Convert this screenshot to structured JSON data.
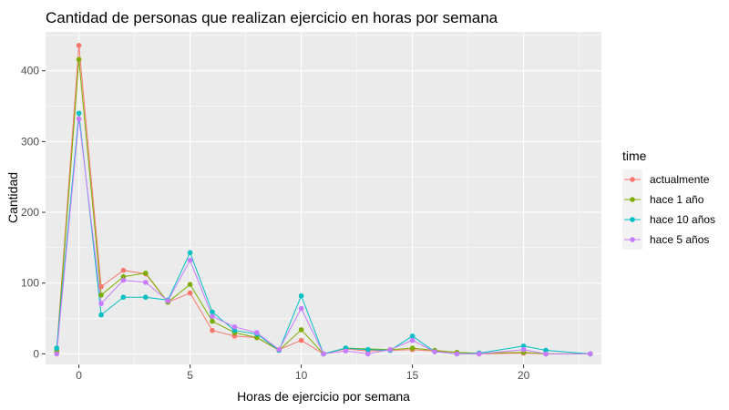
{
  "chart_data": {
    "type": "line",
    "title": "Cantidad de personas que realizan ejercicio en horas por semana",
    "xlabel": "Horas de ejercicio por semana",
    "ylabel": "Cantidad",
    "xlim": [
      -1.5,
      23.5
    ],
    "ylim": [
      -15,
      455
    ],
    "x_ticks": [
      0,
      5,
      10,
      15,
      20
    ],
    "y_ticks": [
      0,
      100,
      200,
      300,
      400
    ],
    "grid": true,
    "legend_title": "time",
    "legend_position": "right",
    "series": [
      {
        "name": "actualmente",
        "color": "#F8766D",
        "points": [
          [
            -1,
            5
          ],
          [
            0,
            436
          ],
          [
            1,
            95
          ],
          [
            2,
            118
          ],
          [
            3,
            113
          ],
          [
            4,
            73
          ],
          [
            5,
            86
          ],
          [
            6,
            33
          ],
          [
            7,
            25
          ],
          [
            8,
            23
          ],
          [
            9,
            6
          ],
          [
            10,
            19
          ],
          [
            11,
            0
          ],
          [
            12,
            7
          ],
          [
            13,
            4
          ],
          [
            14,
            5
          ],
          [
            15,
            6
          ],
          [
            16,
            4
          ],
          [
            17,
            2
          ],
          [
            18,
            0
          ],
          [
            20,
            1
          ],
          [
            21,
            0
          ],
          [
            23,
            0
          ]
        ]
      },
      {
        "name": "hace 1 año",
        "color": "#7CAE00",
        "points": [
          [
            -1,
            3
          ],
          [
            0,
            416
          ],
          [
            1,
            83
          ],
          [
            2,
            109
          ],
          [
            3,
            114
          ],
          [
            4,
            73
          ],
          [
            5,
            98
          ],
          [
            6,
            46
          ],
          [
            7,
            30
          ],
          [
            8,
            23
          ],
          [
            9,
            5
          ],
          [
            10,
            34
          ],
          [
            11,
            0
          ],
          [
            12,
            8
          ],
          [
            14,
            6
          ],
          [
            15,
            8
          ],
          [
            16,
            5
          ],
          [
            17,
            2
          ],
          [
            18,
            1
          ],
          [
            20,
            2
          ],
          [
            21,
            0
          ],
          [
            23,
            0
          ]
        ]
      },
      {
        "name": "hace 10 años",
        "color": "#00BFC4",
        "points": [
          [
            -1,
            8
          ],
          [
            0,
            340
          ],
          [
            1,
            55
          ],
          [
            2,
            80
          ],
          [
            3,
            80
          ],
          [
            4,
            76
          ],
          [
            5,
            143
          ],
          [
            6,
            59
          ],
          [
            7,
            33
          ],
          [
            8,
            28
          ],
          [
            9,
            5
          ],
          [
            10,
            82
          ],
          [
            11,
            0
          ],
          [
            12,
            8
          ],
          [
            13,
            6
          ],
          [
            14,
            5
          ],
          [
            15,
            25
          ],
          [
            16,
            3
          ],
          [
            17,
            0
          ],
          [
            18,
            1
          ],
          [
            20,
            11
          ],
          [
            21,
            5
          ],
          [
            23,
            0
          ]
        ]
      },
      {
        "name": "hace 5 años",
        "color": "#C77CFF",
        "points": [
          [
            -1,
            0
          ],
          [
            0,
            332
          ],
          [
            1,
            71
          ],
          [
            2,
            104
          ],
          [
            3,
            101
          ],
          [
            4,
            75
          ],
          [
            5,
            132
          ],
          [
            6,
            53
          ],
          [
            7,
            38
          ],
          [
            8,
            30
          ],
          [
            9,
            6
          ],
          [
            10,
            64
          ],
          [
            11,
            0
          ],
          [
            12,
            4
          ],
          [
            13,
            0
          ],
          [
            14,
            6
          ],
          [
            15,
            19
          ],
          [
            16,
            3
          ],
          [
            17,
            0
          ],
          [
            18,
            0
          ],
          [
            20,
            6
          ],
          [
            21,
            0
          ],
          [
            23,
            0
          ]
        ]
      }
    ]
  }
}
